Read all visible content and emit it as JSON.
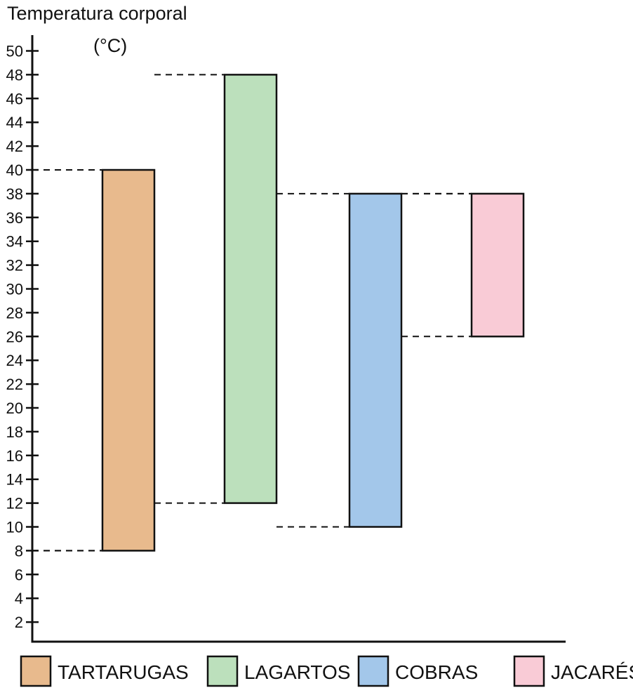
{
  "chart_data": {
    "type": "bar",
    "subtype": "floating-range",
    "ylabel": "Temperatura corporal",
    "yunit": "(°C)",
    "ylim": [
      0,
      50
    ],
    "yticks": [
      2,
      4,
      6,
      8,
      10,
      12,
      14,
      16,
      18,
      20,
      22,
      24,
      26,
      28,
      30,
      32,
      34,
      36,
      38,
      40,
      42,
      44,
      46,
      48,
      50
    ],
    "grid": false,
    "reference_lines": "dashed",
    "legend_position": "bottom",
    "series": [
      {
        "name": "TARTARUGAS",
        "min": 8,
        "max": 40,
        "color": "#E8BA8D"
      },
      {
        "name": "LAGARTOS",
        "min": 12,
        "max": 48,
        "color": "#BCE0BC"
      },
      {
        "name": "COBRAS",
        "min": 10,
        "max": 38,
        "color": "#A3C7EA"
      },
      {
        "name": "JACARÉS",
        "min": 26,
        "max": 38,
        "color": "#F9CBD6"
      }
    ]
  }
}
